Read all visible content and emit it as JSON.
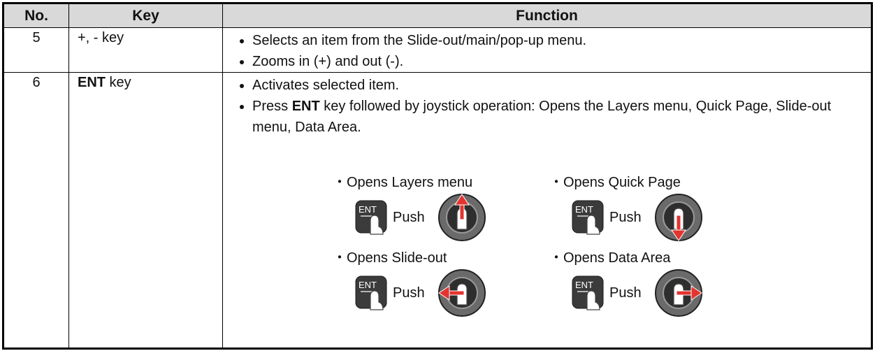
{
  "table": {
    "headers": [
      "No.",
      "Key",
      "Function"
    ],
    "rows": [
      {
        "no": "5",
        "key": "+, - key",
        "function": [
          "Selects an item from the Slide-out/main/pop-up menu.",
          "Zooms in (+) and out (-)."
        ]
      },
      {
        "no": "6",
        "key_bold": "ENT",
        "key_rest": " key",
        "function": [
          "Activates selected item."
        ],
        "function_rich": [
          "Press ",
          "ENT",
          " key followed by joystick operation: Opens the Layers menu, Quick Page, Slide-out menu, Data Area."
        ],
        "illustrations": [
          {
            "caption": "・Opens Layers menu",
            "key": "ENT",
            "action": "Push",
            "direction": "up"
          },
          {
            "caption": "・Opens Quick Page",
            "key": "ENT",
            "action": "Push",
            "direction": "down"
          },
          {
            "caption": "・Opens Slide-out",
            "key": "ENT",
            "action": "Push",
            "direction": "left"
          },
          {
            "caption": "・Opens Data Area",
            "key": "ENT",
            "action": "Push",
            "direction": "right"
          }
        ]
      }
    ]
  }
}
